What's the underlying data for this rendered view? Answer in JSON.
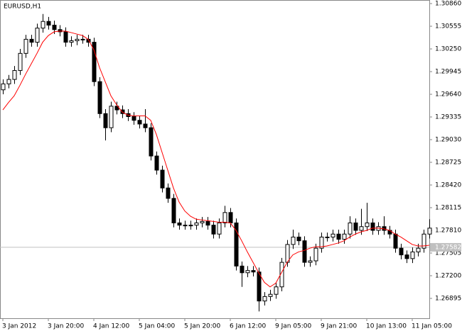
{
  "chart_data": {
    "type": "candlestick",
    "title": "EURUSD,H1",
    "categories": [
      "3 Jan 2012",
      null,
      null,
      null,
      null,
      null,
      null,
      null,
      "3 Jan 20:00",
      null,
      null,
      null,
      null,
      null,
      null,
      null,
      "4 Jan 12:00",
      null,
      null,
      null,
      null,
      null,
      null,
      null,
      "5 Jan 04:00",
      null,
      null,
      null,
      null,
      null,
      null,
      null,
      "5 Jan 20:00",
      null,
      null,
      null,
      null,
      null,
      null,
      null,
      "6 Jan 12:00",
      null,
      null,
      null,
      null,
      null,
      null,
      null,
      "9 Jan 05:00",
      null,
      null,
      null,
      null,
      null,
      null,
      null,
      "9 Jan 21:00",
      null,
      null,
      null,
      null,
      null,
      null,
      null,
      "10 Jan 13:00",
      null,
      null,
      null,
      null,
      null,
      null,
      null,
      "11 Jan 05:00",
      null,
      null,
      null
    ],
    "open": [
      1.297,
      1.2978,
      1.2984,
      1.2996,
      1.3019,
      1.3038,
      1.3034,
      1.3053,
      1.3062,
      1.3057,
      1.3051,
      1.3048,
      1.3034,
      1.3036,
      1.3038,
      1.3038,
      1.3034,
      1.2981,
      1.2938,
      1.2919,
      1.2948,
      1.2943,
      1.2938,
      1.2934,
      1.2929,
      1.2924,
      1.2919,
      1.2881,
      1.2862,
      1.2838,
      1.2824,
      1.2791,
      1.2788,
      1.2788,
      1.2788,
      1.2791,
      1.2793,
      1.2788,
      1.2776,
      1.2791,
      1.2805,
      1.2791,
      1.2733,
      1.2724,
      1.2727,
      1.2725,
      1.2686,
      1.2692,
      1.2695,
      1.2705,
      1.2738,
      1.2762,
      1.2772,
      1.2767,
      1.2738,
      1.274,
      1.2757,
      1.2772,
      1.2772,
      1.2776,
      1.2769,
      1.2776,
      1.2791,
      1.2781,
      1.2786,
      1.2791,
      1.2781,
      1.2786,
      1.2781,
      1.2776,
      1.2757,
      1.2748,
      1.2743,
      1.2752,
      1.2757,
      1.2776
    ],
    "high": [
      1.2984,
      1.299,
      1.3002,
      1.3025,
      1.3044,
      1.3044,
      1.3059,
      1.3072,
      1.3068,
      1.3063,
      1.3057,
      1.3054,
      1.3042,
      1.3044,
      1.3044,
      1.3044,
      1.304,
      1.2987,
      1.2944,
      1.2954,
      1.2954,
      1.2949,
      1.2944,
      1.294,
      1.2935,
      1.2944,
      1.2925,
      1.2887,
      1.2868,
      1.2844,
      1.283,
      1.2797,
      1.2794,
      1.2794,
      1.2797,
      1.2799,
      1.2799,
      1.2794,
      1.2797,
      1.2814,
      1.2811,
      1.2797,
      1.2739,
      1.2733,
      1.2733,
      1.2731,
      1.2698,
      1.2701,
      1.2711,
      1.2744,
      1.2768,
      1.2782,
      1.2778,
      1.2773,
      1.2746,
      1.2763,
      1.2778,
      1.2778,
      1.2782,
      1.2782,
      1.2782,
      1.28,
      1.2797,
      1.281,
      1.2818,
      1.2797,
      1.2792,
      1.28,
      1.2787,
      1.2782,
      1.2763,
      1.2754,
      1.2758,
      1.2763,
      1.2782,
      1.2796
    ],
    "low": [
      1.2964,
      1.2972,
      1.2978,
      1.299,
      1.3013,
      1.3028,
      1.3028,
      1.3047,
      1.3051,
      1.3045,
      1.3042,
      1.3028,
      1.3028,
      1.303,
      1.3032,
      1.3028,
      1.2975,
      1.2932,
      1.2902,
      1.2913,
      1.2937,
      1.2932,
      1.2928,
      1.2923,
      1.2918,
      1.2913,
      1.2875,
      1.2856,
      1.2832,
      1.2818,
      1.2785,
      1.2782,
      1.2782,
      1.2782,
      1.2782,
      1.2785,
      1.2782,
      1.277,
      1.277,
      1.2785,
      1.2785,
      1.2727,
      1.2705,
      1.2718,
      1.2719,
      1.2672,
      1.268,
      1.2686,
      1.2689,
      1.2699,
      1.2732,
      1.2756,
      1.2761,
      1.2732,
      1.2732,
      1.2734,
      1.2751,
      1.2766,
      1.2766,
      1.2763,
      1.2763,
      1.277,
      1.2775,
      1.2775,
      1.278,
      1.2775,
      1.2775,
      1.2775,
      1.277,
      1.2751,
      1.2742,
      1.2737,
      1.2737,
      1.2746,
      1.2751,
      1.277
    ],
    "close": [
      1.2978,
      1.2984,
      1.2996,
      1.3019,
      1.3038,
      1.3034,
      1.3053,
      1.3062,
      1.3057,
      1.3051,
      1.3048,
      1.3034,
      1.3036,
      1.3038,
      1.3038,
      1.3034,
      1.2981,
      1.2938,
      1.2919,
      1.2948,
      1.2943,
      1.2938,
      1.2934,
      1.2929,
      1.2924,
      1.2919,
      1.2881,
      1.2862,
      1.2838,
      1.2824,
      1.2791,
      1.2788,
      1.2788,
      1.2788,
      1.2791,
      1.2793,
      1.2788,
      1.2776,
      1.2791,
      1.2805,
      1.2791,
      1.2733,
      1.2724,
      1.2727,
      1.2725,
      1.2686,
      1.2692,
      1.2695,
      1.2705,
      1.2738,
      1.2762,
      1.2772,
      1.2767,
      1.2738,
      1.274,
      1.2757,
      1.2772,
      1.2772,
      1.2776,
      1.2769,
      1.2776,
      1.2791,
      1.2781,
      1.2786,
      1.2791,
      1.2781,
      1.2786,
      1.2781,
      1.2776,
      1.2757,
      1.2748,
      1.2743,
      1.2752,
      1.2757,
      1.2776,
      1.2784
    ],
    "ma": [
      1.2943,
      1.2953,
      1.2962,
      1.2976,
      1.2991,
      1.3005,
      1.3019,
      1.3034,
      1.3043,
      1.3048,
      1.3049,
      1.3049,
      1.3047,
      1.3045,
      1.3043,
      1.3038,
      1.3024,
      1.3,
      1.2981,
      1.2962,
      1.295,
      1.294,
      1.2936,
      1.2935,
      1.2935,
      1.2935,
      1.2929,
      1.291,
      1.2886,
      1.2862,
      1.2838,
      1.2819,
      1.2807,
      1.28,
      1.2796,
      1.2795,
      1.2794,
      1.2793,
      1.2792,
      1.2792,
      1.2791,
      1.2781,
      1.2767,
      1.2752,
      1.2738,
      1.2724,
      1.2711,
      1.2705,
      1.271,
      1.2724,
      1.2738,
      1.2748,
      1.2752,
      1.2754,
      1.2757,
      1.2759,
      1.2759,
      1.276,
      1.2762,
      1.2764,
      1.2767,
      1.2772,
      1.2776,
      1.2779,
      1.2781,
      1.2784,
      1.2784,
      1.2783,
      1.2781,
      1.2776,
      1.2772,
      1.2767,
      1.2762,
      1.276,
      1.276,
      1.2761
    ],
    "up_color": "#ffffff",
    "down_color": "#000000",
    "ma_color": "#ff0000",
    "current_price": 1.27582,
    "ylim": [
      1.26628,
      1.30908
    ],
    "yticks": [
      {
        "value": 1.3086,
        "label": "1.30860"
      },
      1.30555,
      {
        "value": 1.3025,
        "label": "1.30250"
      },
      1.29945,
      {
        "value": 1.2964,
        "label": "1.29640"
      },
      1.29335,
      {
        "value": 1.2903,
        "label": "1.29030"
      },
      1.28725,
      {
        "value": 1.2842,
        "label": "1.28420"
      },
      1.28115,
      {
        "value": 1.2781,
        "label": "1.27810"
      },
      1.27505,
      {
        "value": 1.272,
        "label": "1.27200"
      },
      1.26895
    ]
  }
}
